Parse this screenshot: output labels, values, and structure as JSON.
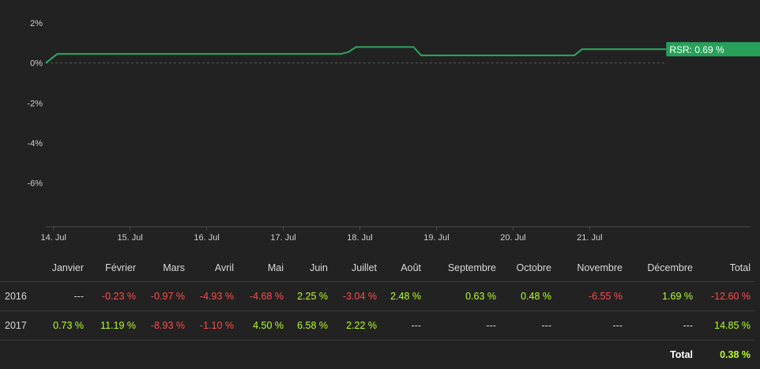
{
  "chart_data": {
    "type": "line",
    "series": [
      {
        "name": "RSR",
        "color": "#2ea760",
        "points": [
          [
            "13.9",
            0.0
          ],
          [
            "14.05",
            0.45
          ],
          [
            "17.75",
            0.45
          ],
          [
            "17.85",
            0.55
          ],
          [
            "17.95",
            0.8
          ],
          [
            "18.7",
            0.8
          ],
          [
            "18.8",
            0.38
          ],
          [
            "20.8",
            0.38
          ],
          [
            "20.9",
            0.69
          ],
          [
            "22.0",
            0.69
          ]
        ]
      }
    ],
    "y_ticks": [
      "2%",
      "0%",
      "-2%",
      "-4%",
      "-6%"
    ],
    "y_tick_values": [
      2,
      0,
      -2,
      -4,
      -6
    ],
    "ylim": [
      -8.2,
      2.6
    ],
    "x_ticks": [
      "14. Jul",
      "15. Jul",
      "16. Jul",
      "17. Jul",
      "18. Jul",
      "19. Jul",
      "20. Jul",
      "21. Jul"
    ],
    "x_tick_values": [
      14,
      15,
      16,
      17,
      18,
      19,
      20,
      21
    ],
    "xlim": [
      13.9,
      23.1
    ],
    "baseline": 0,
    "grid": false,
    "last_label": "RSR: 0.69 %",
    "label_color": "#27a15a"
  },
  "table": {
    "headers": [
      "",
      "Janvier",
      "Février",
      "Mars",
      "Avril",
      "Mai",
      "Juin",
      "Juillet",
      "Août",
      "Septembre",
      "Octobre",
      "Novembre",
      "Décembre",
      "Total"
    ],
    "rows": [
      {
        "year": "2016",
        "cells": [
          "---",
          "-0.23 %",
          "-0.97 %",
          "-4.93 %",
          "-4.68 %",
          "2.25 %",
          "-3.04 %",
          "2.48 %",
          "0.63 %",
          "0.48 %",
          "-6.55 %",
          "1.69 %",
          "-12.60 %"
        ]
      },
      {
        "year": "2017",
        "cells": [
          "0.73 %",
          "11.19 %",
          "-8.93 %",
          "-1.10 %",
          "4.50 %",
          "6.58 %",
          "2.22 %",
          "---",
          "---",
          "---",
          "---",
          "---",
          "14.85 %"
        ]
      }
    ],
    "total_label": "Total",
    "total_value": "0.38 %"
  }
}
